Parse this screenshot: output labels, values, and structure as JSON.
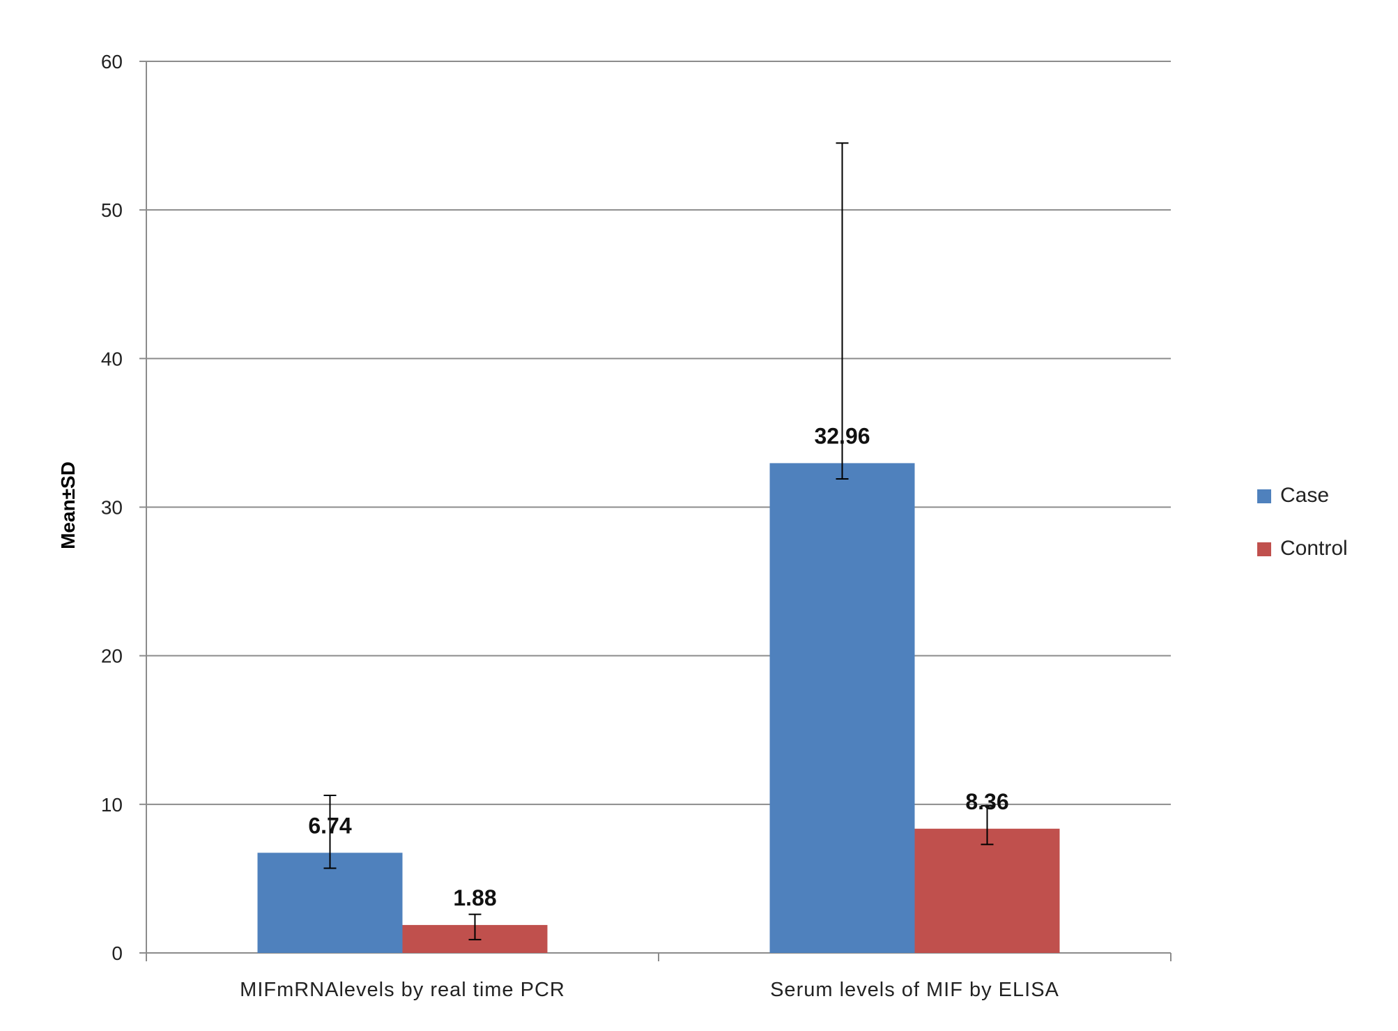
{
  "chart_data": {
    "type": "bar",
    "title": "",
    "xlabel": "",
    "ylabel": "Mean±SD",
    "ylim": [
      0,
      60
    ],
    "yticks": [
      0,
      10,
      20,
      30,
      40,
      50,
      60
    ],
    "grid": true,
    "legend_position": "right",
    "categories": [
      "MIFmRNAlevels by real time PCR",
      "Serum levels of MIF by ELISA"
    ],
    "series": [
      {
        "name": "Case",
        "color": "#4f81bd",
        "values": [
          6.74,
          32.96
        ],
        "error": [
          [
            5.7,
            10.6
          ],
          [
            31.9,
            54.5
          ]
        ],
        "labels": [
          "6.74",
          "32.96"
        ]
      },
      {
        "name": "Control",
        "color": "#c0504d",
        "values": [
          1.88,
          8.36
        ],
        "error": [
          [
            0.9,
            2.6
          ],
          [
            7.3,
            9.9
          ]
        ],
        "labels": [
          "1.88",
          "8.36"
        ]
      }
    ]
  }
}
